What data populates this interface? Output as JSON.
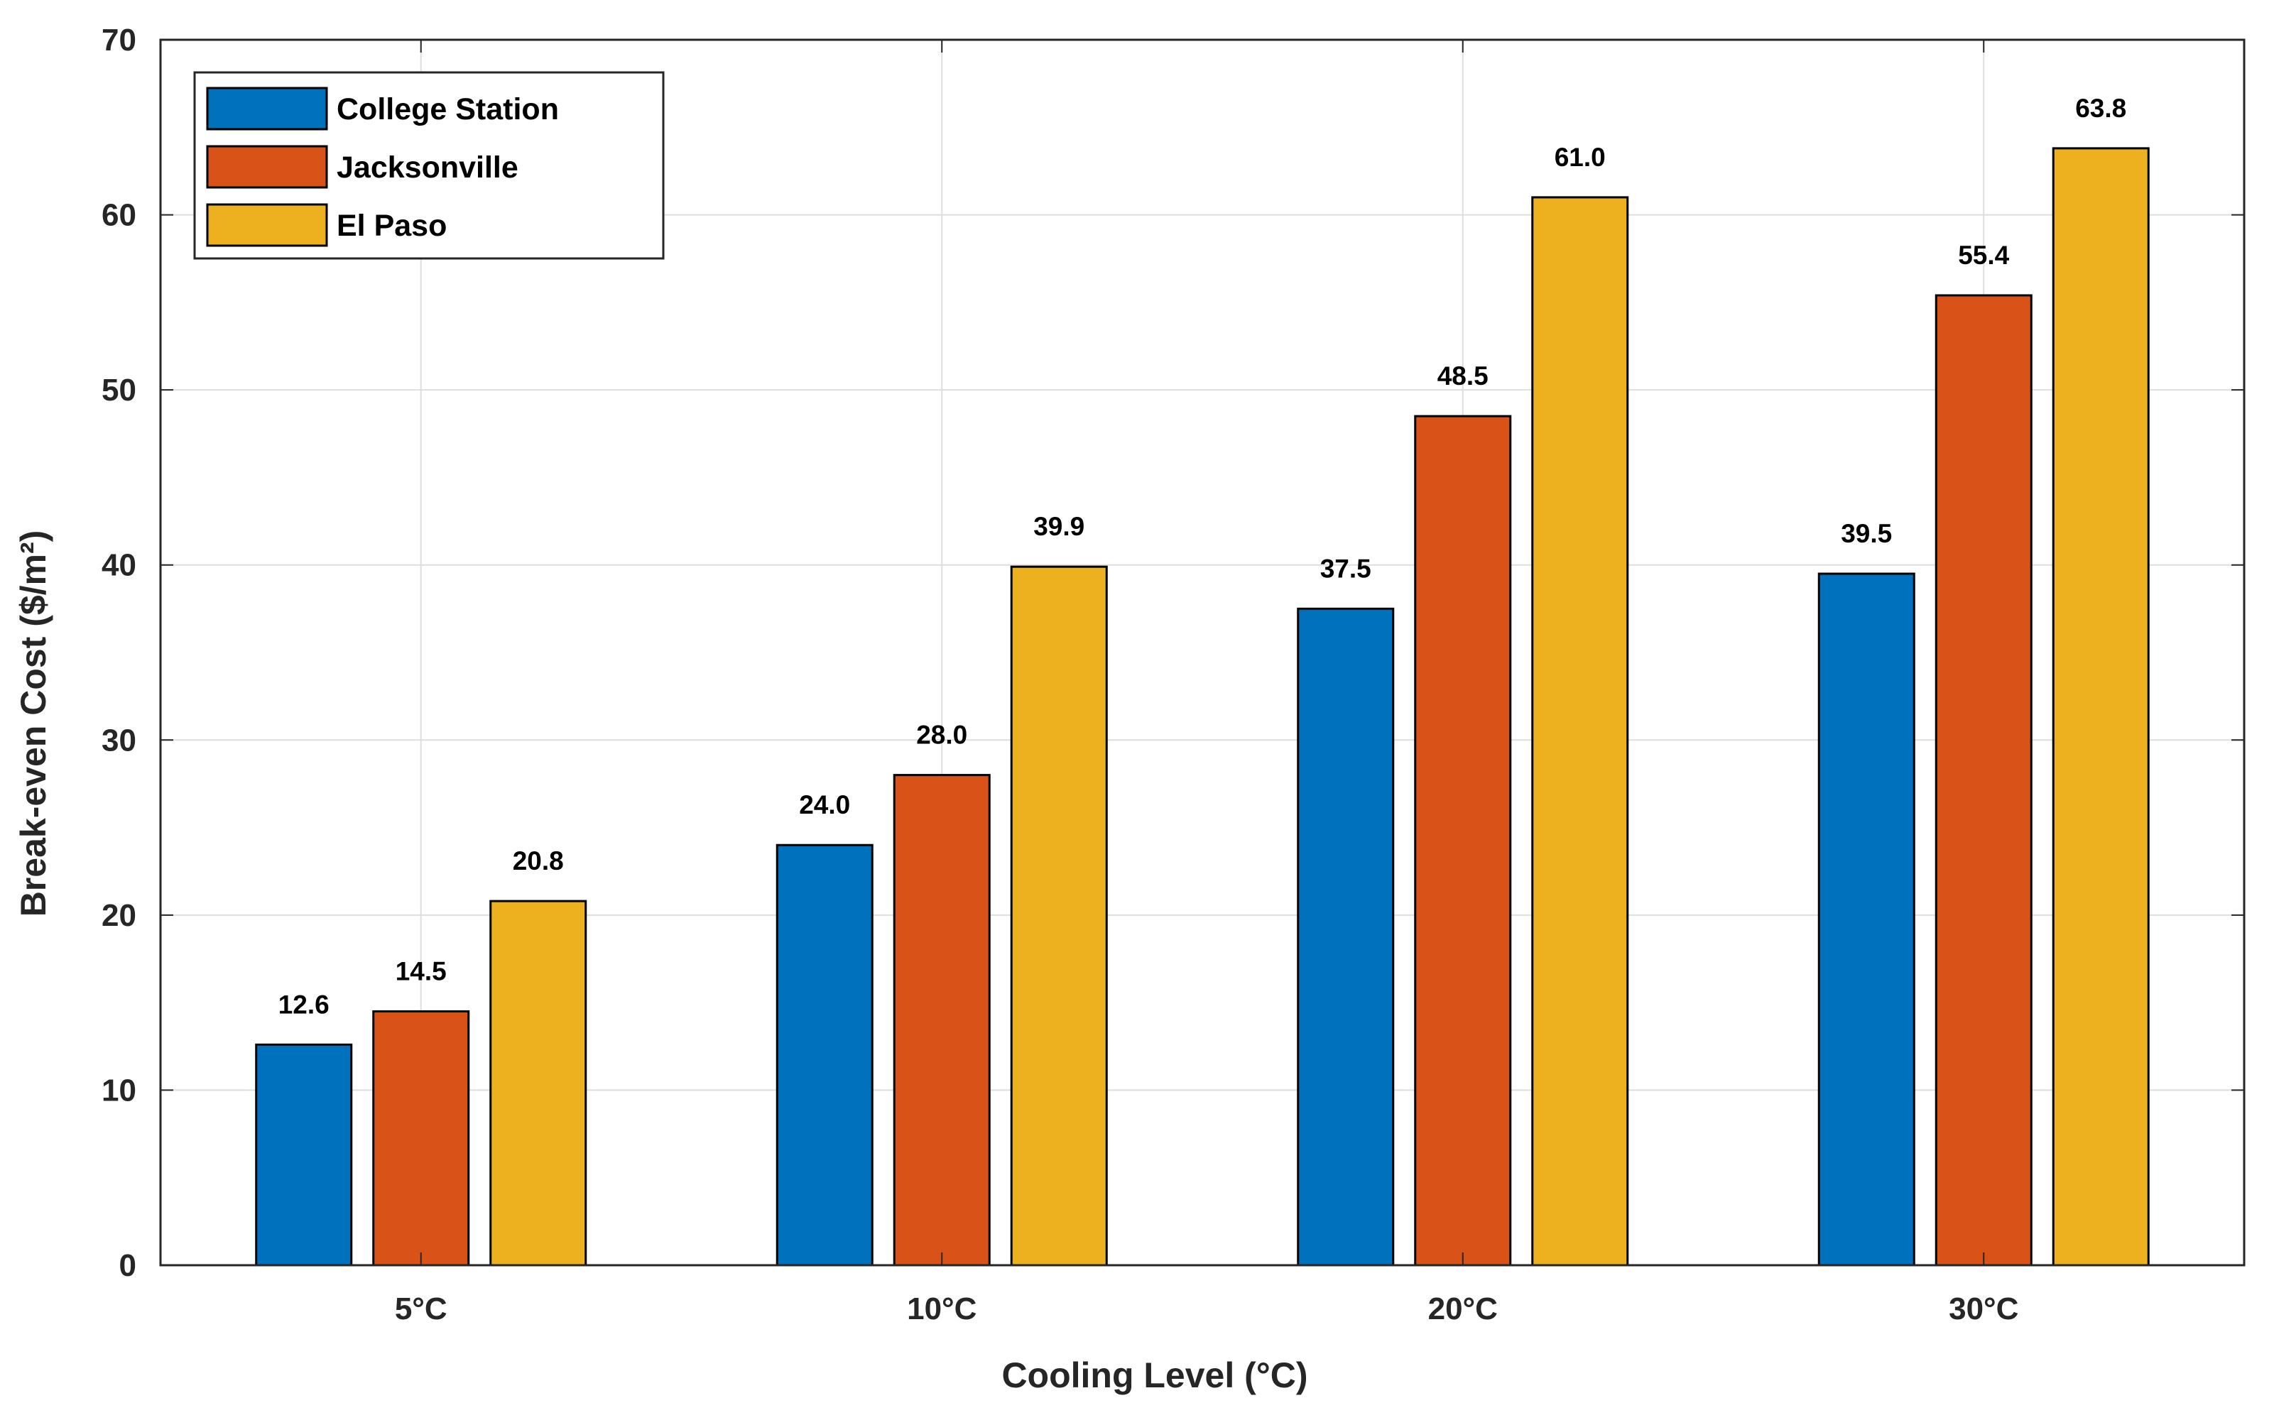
{
  "chart_data": {
    "type": "bar",
    "title": "",
    "xlabel": "Cooling Level (°C)",
    "ylabel": "Break-even Cost ($/m²)",
    "categories": [
      "5°C",
      "10°C",
      "20°C",
      "30°C"
    ],
    "series": [
      {
        "name": "College Station",
        "color": "#0072BD",
        "values": [
          12.6,
          24.0,
          37.5,
          39.5
        ],
        "labels": [
          "12.6",
          "24.0",
          "37.5",
          "39.5"
        ]
      },
      {
        "name": "Jacksonville",
        "color": "#D95319",
        "values": [
          14.5,
          28.0,
          48.5,
          55.4
        ],
        "labels": [
          "14.5",
          "28.0",
          "48.5",
          "55.4"
        ]
      },
      {
        "name": "El Paso",
        "color": "#EDB120",
        "values": [
          20.8,
          39.9,
          61.0,
          63.8
        ],
        "labels": [
          "20.8",
          "39.9",
          "61.0",
          "63.8"
        ]
      }
    ],
    "ylim": [
      0,
      70
    ],
    "yticks": [
      0,
      10,
      20,
      30,
      40,
      50,
      60,
      70
    ],
    "ytick_labels": [
      "0",
      "10",
      "20",
      "30",
      "40",
      "50",
      "60",
      "70"
    ],
    "grid": true,
    "legend_position": "top-left"
  }
}
